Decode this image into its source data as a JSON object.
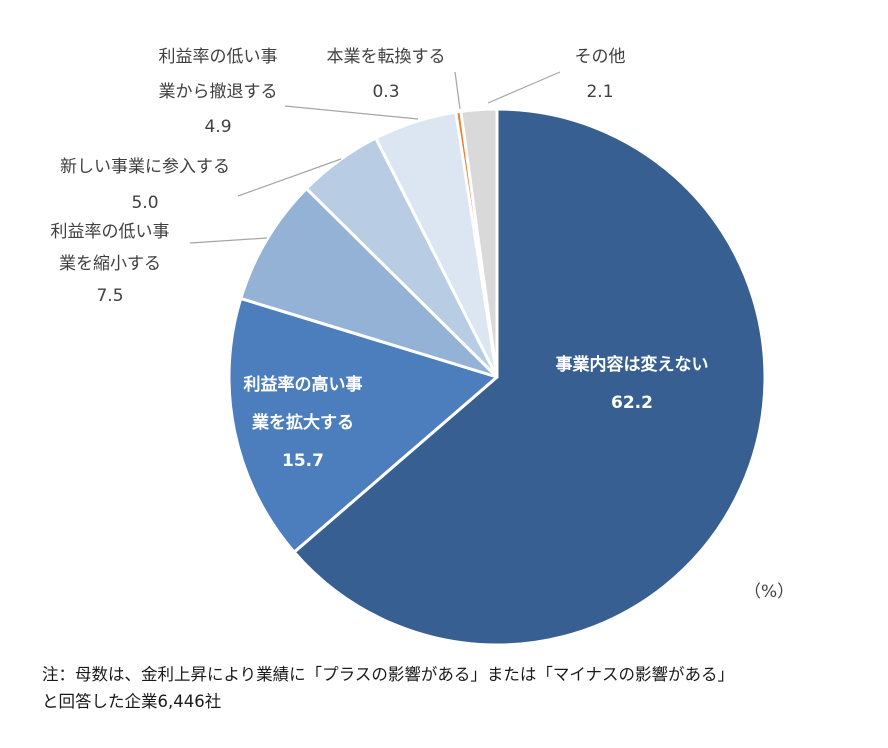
{
  "chart_data": {
    "type": "pie",
    "unit_label": "（%）",
    "slices": [
      {
        "name": "事業内容は変えない",
        "label_lines": [
          "事業内容は変えない"
        ],
        "value": 62.2,
        "value_text": "62.2",
        "color": "#375F91",
        "label_style": "inside"
      },
      {
        "name": "利益率の高い事業を拡大する",
        "label_lines": [
          "利益率の高い事",
          "業を拡大する"
        ],
        "value": 15.7,
        "value_text": "15.7",
        "color": "#4C7DBD",
        "label_style": "inside"
      },
      {
        "name": "利益率の低い事業を縮小する",
        "label_lines": [
          "利益率の低い事",
          "業を縮小する"
        ],
        "value": 7.5,
        "value_text": "7.5",
        "color": "#94B2D6",
        "label_style": "outside"
      },
      {
        "name": "新しい事業に参入する",
        "label_lines": [
          "新しい事業に参入する"
        ],
        "value": 5.0,
        "value_text": "5.0",
        "color": "#B8CCE4",
        "label_style": "outside"
      },
      {
        "name": "利益率の低い事業から撤退する",
        "label_lines": [
          "利益率の低い事",
          "業から撤退する"
        ],
        "value": 4.9,
        "value_text": "4.9",
        "color": "#DCE6F2",
        "label_style": "outside"
      },
      {
        "name": "本業を転換する",
        "label_lines": [
          "本業を転換する"
        ],
        "value": 0.3,
        "value_text": "0.3",
        "color": "#ED7D31",
        "label_style": "outside"
      },
      {
        "name": "その他",
        "label_lines": [
          "その他"
        ],
        "value": 2.1,
        "value_text": "2.1",
        "color": "#D9D9D9",
        "label_style": "outside"
      }
    ]
  },
  "footnote": {
    "line1": "注：母数は、金利上昇により業績に「プラスの影響がある」または「マイナスの影響がある」",
    "line2": "と回答した企業6,446社"
  }
}
